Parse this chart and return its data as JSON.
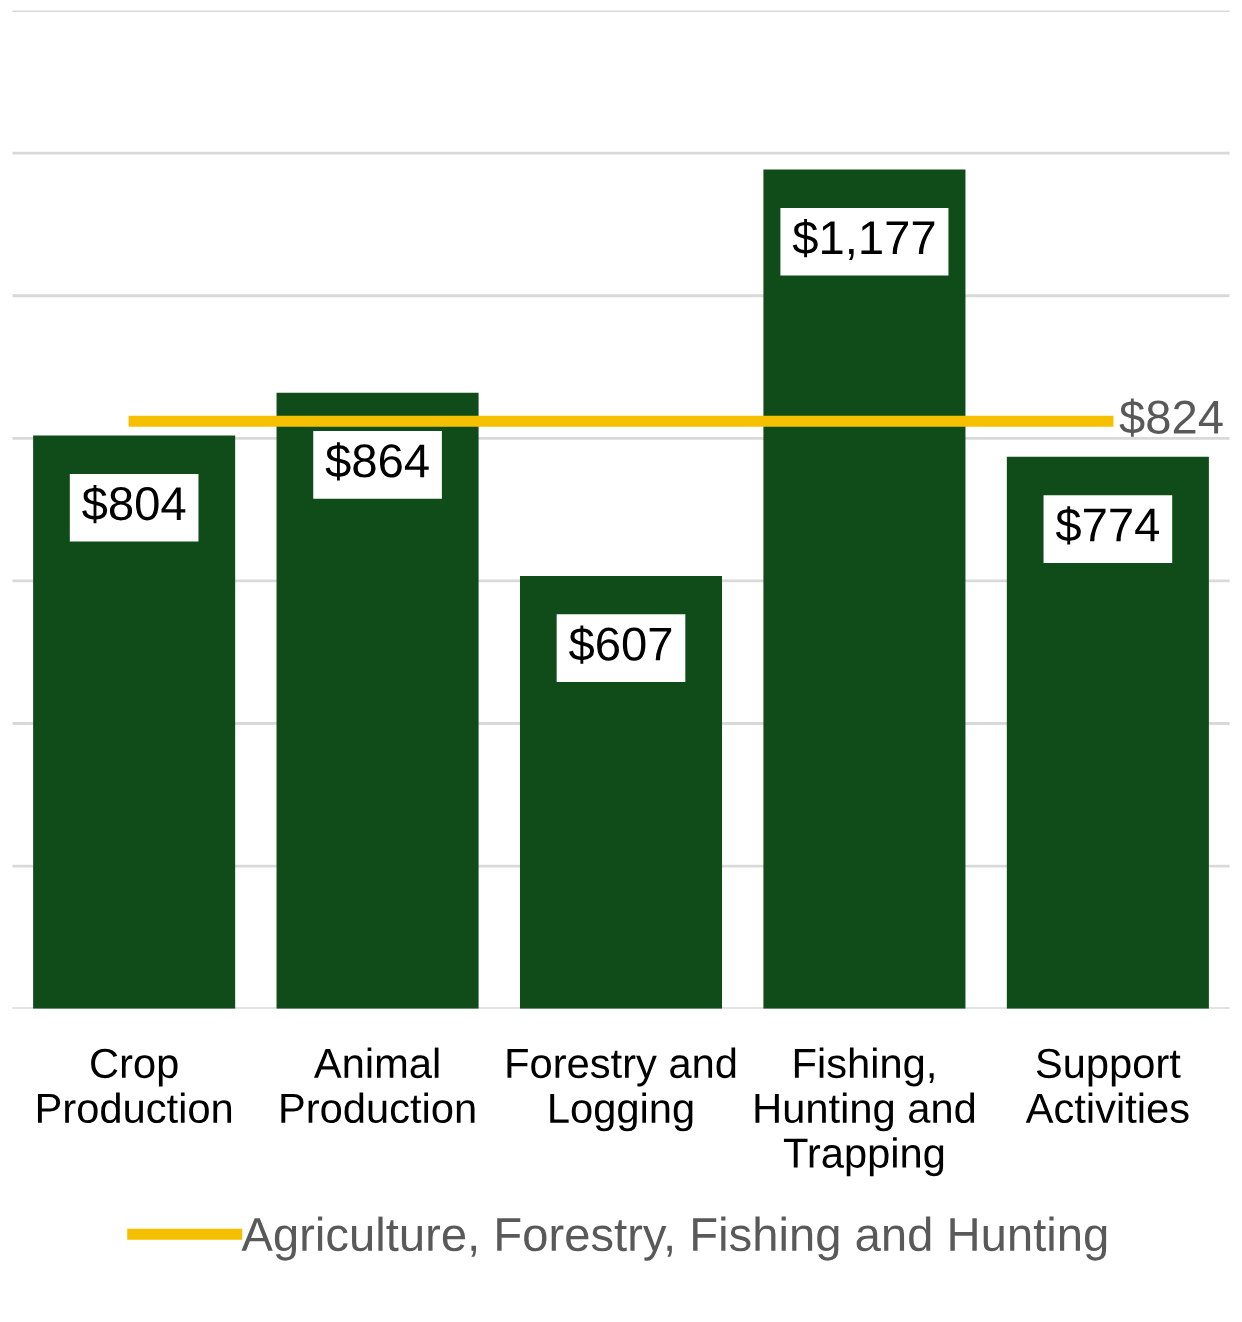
{
  "chart_data": {
    "type": "bar",
    "categories": [
      "Crop\nProduction",
      "Animal\nProduction",
      "Forestry and\nLogging",
      "Fishing,\nHunting and\nTrapping",
      "Support\nActivities"
    ],
    "series": [
      {
        "color": "#104c1a",
        "values": [
          804,
          864,
          607,
          1177,
          774
        ],
        "value_labels": [
          "$804",
          "$864",
          "$607",
          "$1,177",
          "$774"
        ]
      },
      {
        "type": "line",
        "name": "Agriculture, Forestry, Fishing and Hunting",
        "color": "#f5c000",
        "values": [
          824,
          824,
          824,
          824,
          824
        ],
        "value_labels": [
          null,
          null,
          null,
          null,
          "$824"
        ]
      }
    ],
    "ylim": [
      0,
      1400
    ],
    "yticks": [
      {
        "value": 0,
        "label": null
      },
      {
        "value": 200,
        "label": null
      },
      {
        "value": 400,
        "label": null
      },
      {
        "value": 600,
        "label": null
      },
      {
        "value": 800,
        "label": null
      },
      {
        "value": 1000,
        "label": null
      },
      {
        "value": 1200,
        "label": null
      },
      {
        "value": 1400,
        "label": null
      }
    ],
    "tick_labels": "x",
    "grid": "y",
    "legend": "bottom"
  }
}
